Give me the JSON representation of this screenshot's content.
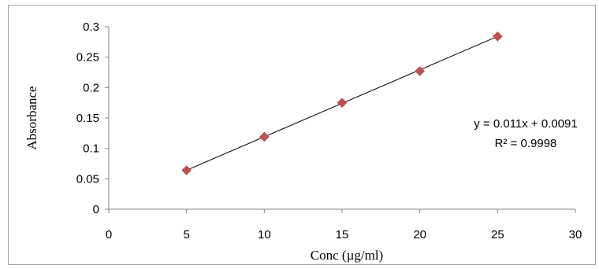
{
  "chart_data": {
    "type": "scatter",
    "xlabel": "Conc (µg/ml)",
    "ylabel": "Absorbance",
    "xlim": [
      0,
      30
    ],
    "ylim": [
      0,
      0.3
    ],
    "x_ticks": [
      0,
      5,
      10,
      15,
      20,
      25,
      30
    ],
    "x_tick_labels": [
      "0",
      "5",
      "10",
      "15",
      "20",
      "25",
      "30"
    ],
    "y_ticks": [
      0,
      0.05,
      0.1,
      0.15,
      0.2,
      0.25,
      0.3
    ],
    "y_tick_labels": [
      "0",
      "0.05",
      "0.1",
      "0.15",
      "0.2",
      "0.25",
      "0.3"
    ],
    "grid": false,
    "marker": "diamond",
    "marker_color": "#c0504d",
    "trendline_color": "#000000",
    "series": [
      {
        "x": [
          5,
          10,
          15,
          20,
          25
        ],
        "y": [
          0.064,
          0.119,
          0.175,
          0.227,
          0.284
        ]
      }
    ],
    "trendline": {
      "type": "linear",
      "slope": 0.011,
      "intercept": 0.0091,
      "x_range": [
        5,
        25
      ],
      "equation_label": "y = 0.011x + 0.0091",
      "r2_label": "R² = 0.9998"
    }
  }
}
